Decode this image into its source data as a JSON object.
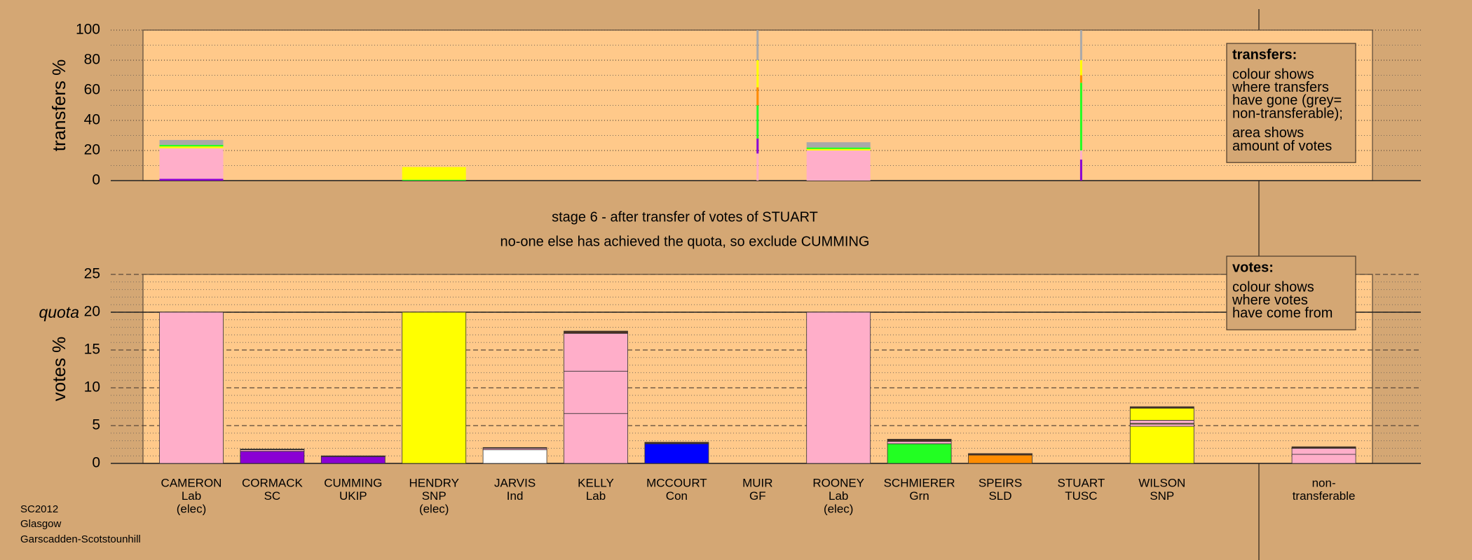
{
  "chart_data": [
    {
      "type": "bar",
      "stacked": true,
      "ylabel": "transfers %",
      "ylim": [
        0,
        100
      ],
      "yticks": [
        0,
        20,
        40,
        60,
        80,
        100
      ],
      "minor_yticks": [
        10,
        30,
        50,
        70,
        90
      ],
      "grid": true,
      "note": {
        "title": "transfers:",
        "paragraphs": [
          [
            "colour shows",
            "where transfers",
            "have gone (grey=",
            "non-transferable);"
          ],
          [
            "area shows",
            "amount of votes"
          ]
        ]
      },
      "stacks": [
        [
          {
            "color": "#8a00d4",
            "value": 1.2
          },
          {
            "color": "#ffaec9",
            "value": 20.3
          },
          {
            "color": "#ffff00",
            "value": 1.2
          },
          {
            "color": "#22ff22",
            "value": 1
          },
          {
            "color": "#a9a9a9",
            "value": 3.3
          }
        ],
        [],
        [],
        [
          {
            "color": "#22ff22",
            "value": 0.6
          },
          {
            "color": "#ffff00",
            "value": 8.4
          }
        ],
        [],
        [],
        [],
        [
          {
            "color": "#ffaec9",
            "value": 18
          },
          {
            "color": "#8a00d4",
            "value": 10
          },
          {
            "color": "#22ff22",
            "value": 22
          },
          {
            "color": "#ff8c00",
            "value": 12
          },
          {
            "color": "#ffff00",
            "value": 18
          },
          {
            "color": "#a9a9a9",
            "value": 20
          }
        ],
        [
          {
            "color": "#ffaec9",
            "value": 20
          },
          {
            "color": "#ffff00",
            "value": 1
          },
          {
            "color": "#22ff22",
            "value": 1
          },
          {
            "color": "#a9a9a9",
            "value": 3.5
          }
        ],
        [],
        [],
        [
          {
            "color": "#8a00d4",
            "value": 14
          },
          {
            "color": "#ffaec9",
            "value": 6
          },
          {
            "color": "#22ff22",
            "value": 45
          },
          {
            "color": "#ff8c00",
            "value": 5
          },
          {
            "color": "#ffff00",
            "value": 10
          },
          {
            "color": "#a9a9a9",
            "value": 20
          }
        ],
        [],
        [],
        []
      ]
    },
    {
      "type": "bar",
      "stacked": true,
      "ylabel": "votes %",
      "ylim": [
        0,
        25
      ],
      "yticks": [
        0,
        5,
        10,
        15,
        20,
        25
      ],
      "minor_yticks": [
        1,
        2,
        3,
        4,
        6,
        7,
        8,
        9,
        11,
        12,
        13,
        14,
        16,
        17,
        18,
        19,
        21,
        22,
        23,
        24
      ],
      "grid": true,
      "quota": {
        "value": 20,
        "label": "quota"
      },
      "note": {
        "title": "votes:",
        "paragraphs": [
          [
            "colour shows",
            "where votes",
            "have come from"
          ]
        ]
      },
      "categories": [
        [
          "CAMERON",
          "Lab",
          "(elec)"
        ],
        [
          "CORMACK",
          "SC"
        ],
        [
          "CUMMING",
          "UKIP"
        ],
        [
          "HENDRY",
          "SNP",
          "(elec)"
        ],
        [
          "JARVIS",
          "Ind"
        ],
        [
          "KELLY",
          "Lab"
        ],
        [
          "MCCOURT",
          "Con"
        ],
        [
          "MUIR",
          "GF"
        ],
        [
          "ROONEY",
          "Lab",
          "(elec)"
        ],
        [
          "SCHMIERER",
          "Grn"
        ],
        [
          "SPEIRS",
          "SLD"
        ],
        [
          "STUART",
          "TUSC"
        ],
        [
          "WILSON",
          "SNP"
        ],
        null,
        [
          "non-",
          "transferable"
        ]
      ],
      "stacks": [
        [
          {
            "color": "#ffaec9",
            "value": 20
          }
        ],
        [
          {
            "color": "#8a00d4",
            "value": 1.6
          },
          {
            "color": "#ffaec9",
            "value": 0.2
          },
          {
            "color": "#4a3020",
            "value": 0.1
          }
        ],
        [
          {
            "color": "#8a00d4",
            "value": 0.9
          },
          {
            "color": "#4a3020",
            "value": 0.1
          }
        ],
        [
          {
            "color": "#ffff00",
            "value": 20
          }
        ],
        [
          {
            "color": "#ffffff",
            "value": 1.8
          },
          {
            "color": "#ffaec9",
            "value": 0.2
          },
          {
            "color": "#4a3020",
            "value": 0.1
          }
        ],
        [
          {
            "color": "#ffaec9",
            "value": 6.6
          },
          {
            "color": "#ffaec9",
            "value": 5.6
          },
          {
            "color": "#ffaec9",
            "value": 5
          },
          {
            "color": "#4a3020",
            "value": 0.3
          }
        ],
        [
          {
            "color": "#0000ff",
            "value": 2.6
          },
          {
            "color": "#4a3020",
            "value": 0.2
          }
        ],
        [],
        [
          {
            "color": "#ffaec9",
            "value": 20
          }
        ],
        [
          {
            "color": "#22ff22",
            "value": 2.6
          },
          {
            "color": "#ffaec9",
            "value": 0.3
          },
          {
            "color": "#4a3020",
            "value": 0.3
          }
        ],
        [
          {
            "color": "#ff8c00",
            "value": 1.1
          },
          {
            "color": "#4a3020",
            "value": 0.2
          }
        ],
        [],
        [
          {
            "color": "#ffff00",
            "value": 4.9
          },
          {
            "color": "#ffaec9",
            "value": 0.3
          },
          {
            "color": "#ffff00",
            "value": 0.1
          },
          {
            "color": "#ffaec9",
            "value": 0.4
          },
          {
            "color": "#ffff00",
            "value": 1.6
          },
          {
            "color": "#4a3020",
            "value": 0.2
          }
        ],
        [],
        [
          {
            "color": "#ffaec9",
            "value": 1.2
          },
          {
            "color": "#ffaec9",
            "value": 0.8
          },
          {
            "color": "#4a3020",
            "value": 0.2
          }
        ]
      ]
    }
  ],
  "status": [
    "stage 6 - after transfer of votes of STUART",
    "no-one else has achieved the quota, so exclude CUMMING"
  ],
  "footer": [
    "SC2012",
    "Glasgow",
    "Garscadden-Scotstounhill"
  ]
}
